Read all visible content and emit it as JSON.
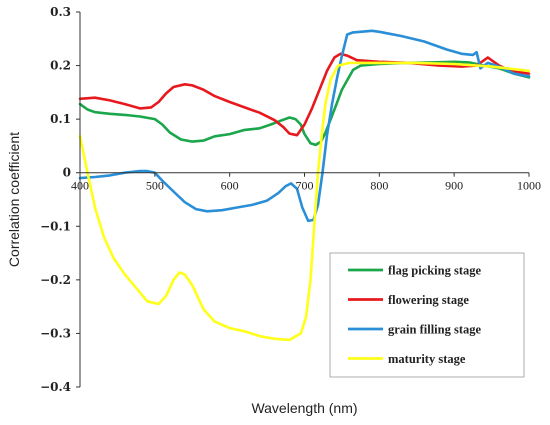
{
  "chart_data": {
    "type": "line",
    "xlabel": "Wavelength (nm)",
    "ylabel": "Correlation coefficient",
    "xlim": [
      400,
      1000
    ],
    "ylim": [
      -0.4,
      0.3
    ],
    "x_ticks": [
      "400",
      "500",
      "600",
      "700",
      "800",
      "900",
      "1000"
    ],
    "y_ticks": [
      "0.3",
      "0.2",
      "0.1",
      "0",
      "-0.1",
      "-0.2",
      "-0.3",
      "-0.4"
    ],
    "grid": false,
    "legend_position": "bottom-right",
    "series": [
      {
        "name": "flag picking stage",
        "color": "#1aa64a",
        "points": [
          [
            400,
            0.128
          ],
          [
            410,
            0.118
          ],
          [
            420,
            0.113
          ],
          [
            440,
            0.11
          ],
          [
            460,
            0.108
          ],
          [
            480,
            0.105
          ],
          [
            500,
            0.1
          ],
          [
            510,
            0.09
          ],
          [
            520,
            0.075
          ],
          [
            535,
            0.062
          ],
          [
            550,
            0.058
          ],
          [
            565,
            0.06
          ],
          [
            580,
            0.068
          ],
          [
            600,
            0.072
          ],
          [
            620,
            0.08
          ],
          [
            640,
            0.083
          ],
          [
            655,
            0.09
          ],
          [
            670,
            0.098
          ],
          [
            680,
            0.103
          ],
          [
            688,
            0.1
          ],
          [
            695,
            0.09
          ],
          [
            700,
            0.072
          ],
          [
            708,
            0.055
          ],
          [
            715,
            0.052
          ],
          [
            722,
            0.058
          ],
          [
            728,
            0.075
          ],
          [
            735,
            0.1
          ],
          [
            742,
            0.125
          ],
          [
            750,
            0.155
          ],
          [
            758,
            0.175
          ],
          [
            765,
            0.192
          ],
          [
            775,
            0.2
          ],
          [
            800,
            0.203
          ],
          [
            830,
            0.205
          ],
          [
            870,
            0.206
          ],
          [
            900,
            0.207
          ],
          [
            920,
            0.206
          ],
          [
            940,
            0.2
          ],
          [
            960,
            0.195
          ],
          [
            980,
            0.185
          ],
          [
            1000,
            0.178
          ]
        ]
      },
      {
        "name": "flowering stage",
        "color": "#e8191e",
        "points": [
          [
            400,
            0.138
          ],
          [
            420,
            0.14
          ],
          [
            440,
            0.135
          ],
          [
            460,
            0.128
          ],
          [
            480,
            0.12
          ],
          [
            495,
            0.122
          ],
          [
            505,
            0.132
          ],
          [
            515,
            0.148
          ],
          [
            525,
            0.16
          ],
          [
            540,
            0.165
          ],
          [
            550,
            0.163
          ],
          [
            565,
            0.155
          ],
          [
            580,
            0.143
          ],
          [
            600,
            0.132
          ],
          [
            620,
            0.122
          ],
          [
            640,
            0.112
          ],
          [
            660,
            0.098
          ],
          [
            672,
            0.085
          ],
          [
            680,
            0.073
          ],
          [
            690,
            0.07
          ],
          [
            700,
            0.09
          ],
          [
            710,
            0.12
          ],
          [
            720,
            0.155
          ],
          [
            730,
            0.19
          ],
          [
            740,
            0.215
          ],
          [
            748,
            0.222
          ],
          [
            758,
            0.218
          ],
          [
            770,
            0.21
          ],
          [
            800,
            0.207
          ],
          [
            840,
            0.205
          ],
          [
            880,
            0.2
          ],
          [
            910,
            0.198
          ],
          [
            930,
            0.2
          ],
          [
            945,
            0.215
          ],
          [
            960,
            0.2
          ],
          [
            975,
            0.19
          ],
          [
            990,
            0.187
          ],
          [
            1000,
            0.185
          ]
        ]
      },
      {
        "name": "grain filling stage",
        "color": "#2a8fd6",
        "points": [
          [
            400,
            -0.01
          ],
          [
            420,
            -0.008
          ],
          [
            440,
            -0.005
          ],
          [
            460,
            0.0
          ],
          [
            480,
            0.003
          ],
          [
            490,
            0.003
          ],
          [
            500,
            0.0
          ],
          [
            510,
            -0.015
          ],
          [
            525,
            -0.035
          ],
          [
            540,
            -0.055
          ],
          [
            555,
            -0.068
          ],
          [
            570,
            -0.072
          ],
          [
            590,
            -0.07
          ],
          [
            610,
            -0.065
          ],
          [
            630,
            -0.06
          ],
          [
            650,
            -0.052
          ],
          [
            665,
            -0.038
          ],
          [
            675,
            -0.025
          ],
          [
            682,
            -0.02
          ],
          [
            690,
            -0.03
          ],
          [
            697,
            -0.065
          ],
          [
            705,
            -0.09
          ],
          [
            712,
            -0.088
          ],
          [
            718,
            -0.06
          ],
          [
            724,
            0.0
          ],
          [
            730,
            0.07
          ],
          [
            737,
            0.13
          ],
          [
            744,
            0.18
          ],
          [
            750,
            0.218
          ],
          [
            757,
            0.258
          ],
          [
            765,
            0.262
          ],
          [
            775,
            0.263
          ],
          [
            790,
            0.265
          ],
          [
            800,
            0.263
          ],
          [
            830,
            0.255
          ],
          [
            860,
            0.245
          ],
          [
            890,
            0.23
          ],
          [
            910,
            0.222
          ],
          [
            925,
            0.22
          ],
          [
            930,
            0.225
          ],
          [
            935,
            0.195
          ],
          [
            945,
            0.205
          ],
          [
            960,
            0.198
          ],
          [
            980,
            0.185
          ],
          [
            1000,
            0.18
          ]
        ]
      },
      {
        "name": "maturity stage",
        "color": "#ffff1a",
        "points": [
          [
            400,
            0.068
          ],
          [
            405,
            0.035
          ],
          [
            410,
            0.0
          ],
          [
            420,
            -0.065
          ],
          [
            432,
            -0.12
          ],
          [
            445,
            -0.16
          ],
          [
            460,
            -0.19
          ],
          [
            475,
            -0.215
          ],
          [
            490,
            -0.24
          ],
          [
            505,
            -0.245
          ],
          [
            515,
            -0.23
          ],
          [
            525,
            -0.2
          ],
          [
            533,
            -0.186
          ],
          [
            540,
            -0.19
          ],
          [
            550,
            -0.21
          ],
          [
            565,
            -0.255
          ],
          [
            580,
            -0.278
          ],
          [
            600,
            -0.29
          ],
          [
            620,
            -0.296
          ],
          [
            640,
            -0.305
          ],
          [
            660,
            -0.31
          ],
          [
            680,
            -0.312
          ],
          [
            695,
            -0.3
          ],
          [
            702,
            -0.27
          ],
          [
            708,
            -0.2
          ],
          [
            713,
            -0.1
          ],
          [
            718,
            0.0
          ],
          [
            723,
            0.07
          ],
          [
            728,
            0.13
          ],
          [
            735,
            0.175
          ],
          [
            745,
            0.2
          ],
          [
            760,
            0.205
          ],
          [
            800,
            0.205
          ],
          [
            850,
            0.205
          ],
          [
            900,
            0.203
          ],
          [
            950,
            0.198
          ],
          [
            1000,
            0.19
          ]
        ]
      }
    ]
  }
}
